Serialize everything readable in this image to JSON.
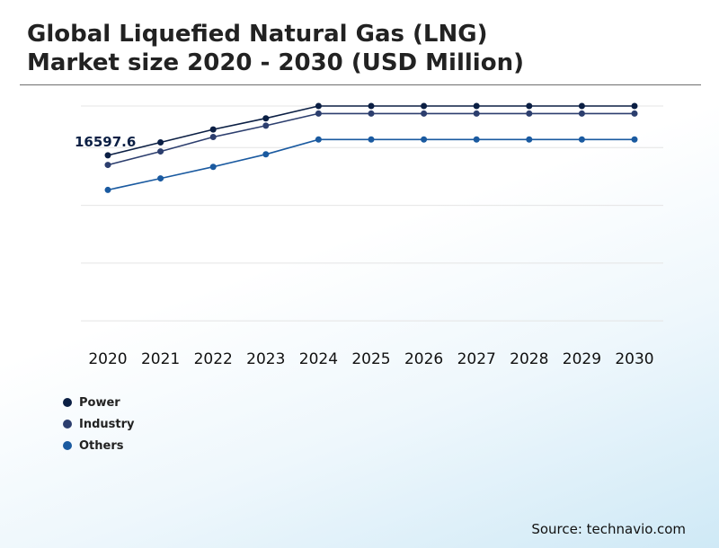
{
  "title_line1": "Global Liquefied Natural Gas (LNG)",
  "title_line2": "Market size 2020 - 2030 (USD Million)",
  "source": "Source: technavio.com",
  "chart_data": {
    "type": "line",
    "title": "Global Liquefied Natural Gas (LNG) Market size 2020 - 2030 (USD Million)",
    "xlabel": "",
    "ylabel": "",
    "categories": [
      "2020",
      "2021",
      "2022",
      "2023",
      "2024",
      "2025",
      "2026",
      "2027",
      "2028",
      "2029",
      "2030"
    ],
    "ylim": [
      6000,
      20000
    ],
    "grid": true,
    "legend_position": "bottom-left",
    "series": [
      {
        "name": "Power",
        "color": "#0b1f44",
        "values": [
          16597.6,
          17270,
          17940,
          18520,
          19160,
          19160,
          19160,
          19160,
          19160,
          19160,
          19160
        ]
      },
      {
        "name": "Industry",
        "color": "#2c3e6e",
        "values": [
          16100,
          16800,
          17550,
          18140,
          18770,
          18770,
          18770,
          18770,
          18770,
          18770,
          18770
        ]
      },
      {
        "name": "Others",
        "color": "#1a5aa0",
        "values": [
          14800,
          15400,
          16000,
          16650,
          17420,
          17420,
          17420,
          17420,
          17420,
          17420,
          17420
        ]
      }
    ],
    "annotations": [
      {
        "series": "Power",
        "category": "2020",
        "text": "16597.6"
      }
    ]
  }
}
